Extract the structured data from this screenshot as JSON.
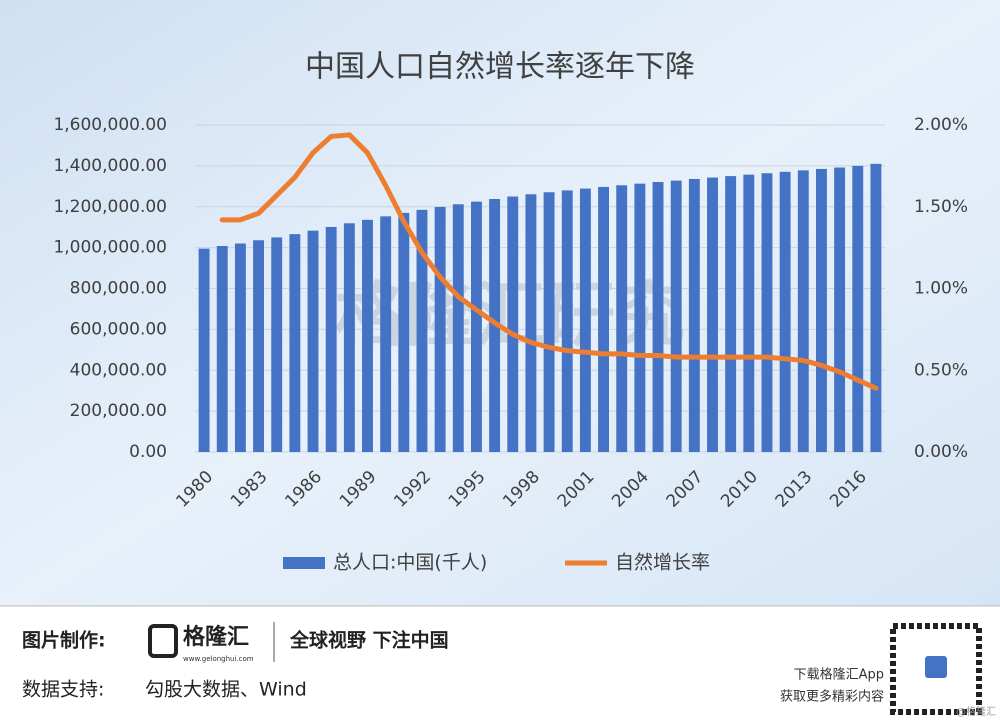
{
  "chart_data": {
    "type": "bar_line",
    "title": "中国人口自然增长率逐年下降",
    "categories": [
      "1980",
      null,
      null,
      "1983",
      null,
      null,
      "1986",
      null,
      null,
      "1989",
      null,
      null,
      "1992",
      null,
      null,
      "1995",
      null,
      null,
      "1998",
      null,
      null,
      "2001",
      null,
      null,
      "2004",
      null,
      null,
      "2007",
      null,
      null,
      "2010",
      null,
      null,
      "2013",
      null,
      null,
      "2016",
      null
    ],
    "series": [
      {
        "name": "总人口:中国(千人)",
        "color": "#4472c4",
        "type": "bar",
        "values": [
          995000,
          1008000,
          1020000,
          1036000,
          1050000,
          1066000,
          1083000,
          1101000,
          1119000,
          1136000,
          1153000,
          1170000,
          1185000,
          1199000,
          1212000,
          1225000,
          1238000,
          1250000,
          1261000,
          1271000,
          1280000,
          1289000,
          1297000,
          1305000,
          1313000,
          1321000,
          1328000,
          1336000,
          1343000,
          1350000,
          1357000,
          1364000,
          1371000,
          1378000,
          1385000,
          1392000,
          1400000,
          1410000
        ]
      },
      {
        "name": "自然增长率",
        "color": "#ed7d31",
        "type": "line",
        "axis": "y2",
        "values": [
          null,
          1.42,
          1.42,
          1.46,
          1.57,
          1.68,
          1.83,
          1.93,
          1.94,
          1.83,
          1.63,
          1.41,
          1.22,
          1.07,
          0.95,
          0.87,
          0.79,
          0.72,
          0.67,
          0.64,
          0.62,
          0.61,
          0.6,
          0.6,
          0.59,
          0.59,
          0.58,
          0.58,
          0.58,
          0.58,
          0.58,
          0.58,
          0.57,
          0.56,
          0.53,
          0.49,
          0.44,
          0.39
        ]
      }
    ],
    "ylim": [
      0,
      1600000
    ],
    "yticks": [
      {
        "value": 0,
        "label": "0.00"
      },
      {
        "value": 200000,
        "label": "200,000.00"
      },
      {
        "value": 400000,
        "label": "400,000.00"
      },
      {
        "value": 600000,
        "label": "600,000.00"
      },
      {
        "value": 800000,
        "label": "800,000.00"
      },
      {
        "value": 1000000,
        "label": "1,000,000.00"
      },
      {
        "value": 1200000,
        "label": "1,200,000.00"
      },
      {
        "value": 1400000,
        "label": "1,400,000.00"
      },
      {
        "value": 1600000,
        "label": "1,600,000.00"
      }
    ],
    "y2lim": [
      0,
      2
    ],
    "y2ticks": [
      {
        "value": 0,
        "label": "0.00%"
      },
      {
        "value": 0.5,
        "label": "0.50%"
      },
      {
        "value": 1,
        "label": "1.00%"
      },
      {
        "value": 1.5,
        "label": "1.50%"
      },
      {
        "value": 2,
        "label": "2.00%"
      }
    ],
    "grid": true,
    "legend": "bottom",
    "watermark": "格隆汇研究"
  },
  "footer": {
    "maker_label": "图片制作:",
    "brand": "格隆汇",
    "brand_url": "www.gelonghui.com",
    "slogan": "全球视野 下注中国",
    "source_label": "数据支持:",
    "source": "勾股大数据、Wind",
    "app_line1": "下载格隆汇App",
    "app_line2": "获取更多精彩内容",
    "credit": "@格隆汇"
  }
}
